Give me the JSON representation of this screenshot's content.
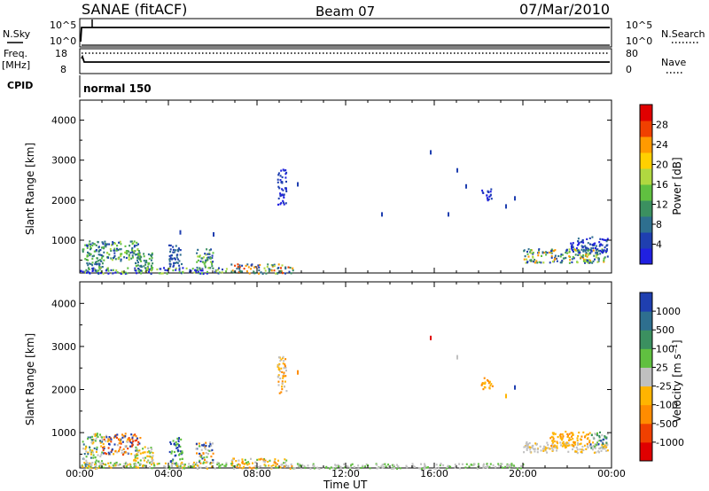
{
  "header": {
    "station": "SANAE (fitACF)",
    "beam": "Beam 07",
    "date": "07/Mar/2010"
  },
  "top_panels": {
    "nsky": {
      "label": "N.Sky",
      "ticks_left": [
        "10^5",
        "10^0"
      ],
      "ticks_right": [
        "10^5",
        "10^0"
      ],
      "right_label": "N.Search"
    },
    "freq": {
      "label_line1": "Freq.",
      "label_line2": "[MHz]",
      "ticks_left": [
        "18",
        "8"
      ],
      "ticks_right": [
        "80",
        "0"
      ],
      "right_label": "Nave"
    },
    "cpid": {
      "label": "CPID",
      "value": "normal 150"
    }
  },
  "chart_data": [
    {
      "type": "heatmap",
      "name_id": "power",
      "ylabel": "Slant Range [km]",
      "xlabel": "",
      "ylim": [
        180,
        4500
      ],
      "yticks": [
        1000,
        2000,
        3000,
        4000
      ],
      "xlim_hours": [
        0,
        24
      ],
      "xticks": [
        "00:00",
        "04:00",
        "08:00",
        "12:00",
        "16:00",
        "20:00",
        "00:00"
      ],
      "colorbar": {
        "label": "Power [dB]",
        "ticks": [
          "28",
          "24",
          "20",
          "16",
          "12",
          "8",
          "4"
        ],
        "colors": [
          "#2020e0",
          "#1f3fb0",
          "#2e6f8f",
          "#3b9060",
          "#60c040",
          "#b0d840",
          "#ffd000",
          "#ff9a00",
          "#f04000",
          "#e00000"
        ]
      },
      "regions": [
        {
          "h": [
            0.1,
            1.0
          ],
          "r": [
            180,
            1000
          ],
          "colors": [
            "#1f3fb0",
            "#2e6f8f",
            "#3b9060",
            "#60c040"
          ]
        },
        {
          "h": [
            1.0,
            2.7
          ],
          "r": [
            500,
            1000
          ],
          "colors": [
            "#1f3fb0",
            "#3b9060",
            "#60c040",
            "#b0d840",
            "#2e6f8f"
          ]
        },
        {
          "h": [
            2.4,
            3.3
          ],
          "r": [
            220,
            700
          ],
          "colors": [
            "#2e6f8f",
            "#3b9060",
            "#60c040"
          ]
        },
        {
          "h": [
            4.0,
            4.6
          ],
          "r": [
            300,
            900
          ],
          "colors": [
            "#1f3fb0",
            "#2e6f8f"
          ]
        },
        {
          "h": [
            5.2,
            6.0
          ],
          "r": [
            300,
            800
          ],
          "colors": [
            "#1f3fb0",
            "#2e6f8f",
            "#3b9060",
            "#60c040",
            "#b0d840"
          ]
        },
        {
          "h": [
            0.0,
            6.6
          ],
          "r": [
            180,
            330
          ],
          "colors": [
            "#2020e0",
            "#1f3fb0",
            "#60c040",
            "#b0d840"
          ]
        },
        {
          "h": [
            6.8,
            9.6
          ],
          "r": [
            180,
            420
          ],
          "colors": [
            "#1f3fb0",
            "#2e6f8f",
            "#3b9060",
            "#b0d840",
            "#ff9a00",
            "#f04000"
          ]
        },
        {
          "h": [
            8.9,
            9.3
          ],
          "r": [
            1900,
            2800
          ],
          "colors": [
            "#1f3fb0",
            "#2020e0"
          ]
        },
        {
          "h": [
            18.1,
            18.6
          ],
          "r": [
            2000,
            2300
          ],
          "colors": [
            "#1f3fb0",
            "#2020e0"
          ]
        },
        {
          "h": [
            20.0,
            23.8
          ],
          "r": [
            450,
            800
          ],
          "colors": [
            "#1f3fb0",
            "#2e6f8f",
            "#3b9060",
            "#60c040",
            "#b0d840",
            "#ff9a00"
          ]
        },
        {
          "h": [
            22.0,
            23.8
          ],
          "r": [
            700,
            1100
          ],
          "colors": [
            "#1f3fb0",
            "#2020e0",
            "#2e6f8f"
          ]
        }
      ],
      "points": [
        {
          "h": 15.8,
          "r": 3250,
          "c": "#1f3fb0"
        },
        {
          "h": 17.0,
          "r": 2800,
          "c": "#1f3fb0"
        },
        {
          "h": 17.4,
          "r": 2400,
          "c": "#1f3fb0"
        },
        {
          "h": 9.8,
          "r": 2450,
          "c": "#1f3fb0"
        },
        {
          "h": 13.6,
          "r": 1700,
          "c": "#1f3fb0"
        },
        {
          "h": 16.6,
          "r": 1700,
          "c": "#1f3fb0"
        },
        {
          "h": 19.2,
          "r": 1900,
          "c": "#1f3fb0"
        },
        {
          "h": 19.6,
          "r": 2100,
          "c": "#1f3fb0"
        },
        {
          "h": 6.0,
          "r": 1200,
          "c": "#1f3fb0"
        },
        {
          "h": 4.5,
          "r": 1250,
          "c": "#1f3fb0"
        }
      ]
    },
    {
      "type": "heatmap",
      "name_id": "velocity",
      "ylabel": "Slant Range [km]",
      "xlabel": "Time UT",
      "ylim": [
        180,
        4500
      ],
      "yticks": [
        1000,
        2000,
        3000,
        4000
      ],
      "xlim_hours": [
        0,
        24
      ],
      "xticks": [
        "00:00",
        "04:00",
        "08:00",
        "12:00",
        "16:00",
        "20:00",
        "00:00"
      ],
      "colorbar": {
        "label": "Velocity [m s⁻¹]",
        "ticks": [
          "1000",
          "500",
          "100",
          "25",
          "-25",
          "-100",
          "-500",
          "-1000"
        ],
        "colors": [
          "#e00000",
          "#f04000",
          "#ff8c00",
          "#ffb400",
          "#c0c0c0",
          "#60c040",
          "#3b9060",
          "#2e6f8f",
          "#1f3fb0"
        ]
      },
      "regions": [
        {
          "h": [
            0.1,
            1.0
          ],
          "r": [
            180,
            1000
          ],
          "colors": [
            "#ffb400",
            "#c0c0c0",
            "#60c040",
            "#2e6f8f"
          ]
        },
        {
          "h": [
            1.0,
            2.7
          ],
          "r": [
            500,
            1000
          ],
          "colors": [
            "#f04000",
            "#ff8c00",
            "#ffb400",
            "#c0c0c0",
            "#1f3fb0"
          ]
        },
        {
          "h": [
            2.4,
            3.3
          ],
          "r": [
            220,
            700
          ],
          "colors": [
            "#60c040",
            "#c0c0c0",
            "#ffb400"
          ]
        },
        {
          "h": [
            4.0,
            4.6
          ],
          "r": [
            300,
            900
          ],
          "colors": [
            "#1f3fb0",
            "#60c040"
          ]
        },
        {
          "h": [
            5.2,
            6.0
          ],
          "r": [
            300,
            800
          ],
          "colors": [
            "#60c040",
            "#ff8c00",
            "#c0c0c0",
            "#1f3fb0"
          ]
        },
        {
          "h": [
            0.0,
            6.6
          ],
          "r": [
            180,
            330
          ],
          "colors": [
            "#c0c0c0",
            "#ffb400",
            "#60c040"
          ]
        },
        {
          "h": [
            6.8,
            9.6
          ],
          "r": [
            180,
            420
          ],
          "colors": [
            "#c0c0c0",
            "#ffb400",
            "#ff8c00",
            "#60c040"
          ]
        },
        {
          "h": [
            9.6,
            20.0
          ],
          "r": [
            180,
            300
          ],
          "colors": [
            "#c0c0c0",
            "#c0c0c0",
            "#60c040"
          ]
        },
        {
          "h": [
            8.9,
            9.3
          ],
          "r": [
            1900,
            2800
          ],
          "colors": [
            "#ff8c00",
            "#ffb400",
            "#c0c0c0"
          ]
        },
        {
          "h": [
            18.1,
            18.6
          ],
          "r": [
            2000,
            2300
          ],
          "colors": [
            "#ff8c00",
            "#ffb400"
          ]
        },
        {
          "h": [
            20.0,
            23.8
          ],
          "r": [
            550,
            800
          ],
          "colors": [
            "#c0c0c0",
            "#c0c0c0",
            "#c0c0c0",
            "#ffb400"
          ]
        },
        {
          "h": [
            21.2,
            23.0
          ],
          "r": [
            700,
            1050
          ],
          "colors": [
            "#ffb400",
            "#ff8c00",
            "#ffb400"
          ]
        },
        {
          "h": [
            23.0,
            23.8
          ],
          "r": [
            650,
            1050
          ],
          "colors": [
            "#60c040",
            "#3b9060",
            "#1f3fb0",
            "#c0c0c0"
          ]
        }
      ],
      "points": [
        {
          "h": 15.8,
          "r": 3250,
          "c": "#e00000"
        },
        {
          "h": 17.0,
          "r": 2800,
          "c": "#c0c0c0"
        },
        {
          "h": 9.8,
          "r": 2450,
          "c": "#ff8c00"
        },
        {
          "h": 19.2,
          "r": 1900,
          "c": "#ffb400"
        },
        {
          "h": 19.6,
          "r": 2100,
          "c": "#1f3fb0"
        }
      ]
    }
  ]
}
